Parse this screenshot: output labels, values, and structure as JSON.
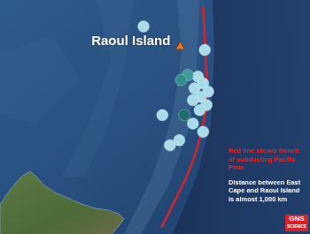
{
  "chart_data": {
    "type": "scatter",
    "xlim": [
      171.5,
      189.6
    ],
    "ylim": [
      -38.5,
      -27
    ],
    "tick_labels": false,
    "grid": false,
    "series": [
      {
        "name": "Raoul Island",
        "type": "scatter",
        "marker": "triangle",
        "color": "#e07a2e",
        "x": [
          182.08
        ],
        "values": [
          -29.1
        ]
      },
      {
        "type": "scatter",
        "marker": "circle",
        "x": [
          179.85,
          183.58,
          183.17,
          183.48,
          182.96,
          183.79,
          183.33,
          182.86,
          183.69,
          182.55,
          182.13,
          182.34,
          183.27,
          181.0,
          182.86,
          183.48,
          182.03,
          181.46
        ],
        "values": [
          -28.04,
          -29.26,
          -30.65,
          -31.0,
          -31.26,
          -31.43,
          -31.7,
          -31.87,
          -32.13,
          -30.57,
          -30.83,
          -32.65,
          -32.39,
          -32.65,
          -33.09,
          -33.52,
          -33.96,
          -34.22
        ],
        "colors": [
          "#a9dbe9",
          "#a9dbe9",
          "#a9dbe9",
          "#a9dbe9",
          "#a9dbe9",
          "#a9dbe9",
          "#a9dbe9",
          "#a9dbe9",
          "#a9dbe9",
          "#3d9c9a",
          "#2f8f8c",
          "#1e6e6f",
          "#a9dbe9",
          "#a9dbe9",
          "#a9dbe9",
          "#a9dbe9",
          "#a9dbe9",
          "#a9dbe9"
        ]
      },
      {
        "type": "line",
        "color": "#d8232a",
        "line_style": "solid",
        "x": [
          183.48,
          183.64,
          183.69,
          183.38,
          182.76,
          181.82,
          180.94
        ],
        "values": [
          -27.0,
          -29.61,
          -31.78,
          -33.52,
          -35.26,
          -37.0,
          -38.5
        ]
      }
    ],
    "annotations": [
      {
        "text": [
          "Red line shows trench",
          "of subducting Pacific",
          "Plate"
        ],
        "color": "#e8252a"
      },
      {
        "text": [
          "Distance between East",
          "Cape and Raoul Island",
          "is almost 1,000 km"
        ],
        "color": "#ffffff"
      }
    ],
    "logo": [
      "GNS",
      "SCIENCE"
    ]
  }
}
